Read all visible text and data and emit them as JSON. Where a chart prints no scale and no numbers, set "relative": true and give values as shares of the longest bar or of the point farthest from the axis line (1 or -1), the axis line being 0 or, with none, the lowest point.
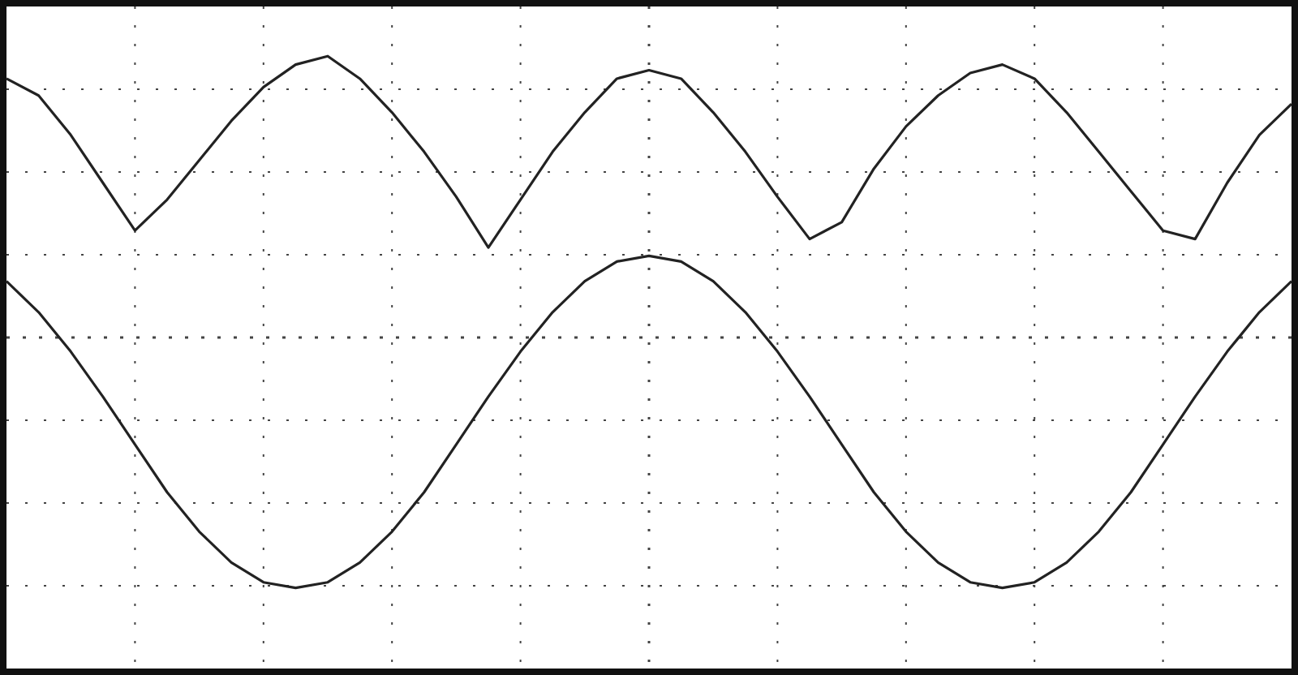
{
  "chart_data": {
    "type": "line",
    "relative": true,
    "ref_lines": [
      {
        "axis": "y",
        "value": 0
      }
    ],
    "grid": true,
    "marker": "none",
    "line_style": "solid",
    "categories": [
      null,
      null,
      null,
      null,
      null,
      null,
      null,
      null,
      null,
      null,
      null,
      null,
      null,
      null,
      null,
      null,
      null,
      null,
      null,
      null,
      null,
      null,
      null,
      null,
      null,
      null,
      null,
      null,
      null,
      null,
      null,
      null,
      null,
      null,
      null,
      null,
      null,
      null,
      null,
      null,
      null
    ],
    "series": [
      {
        "color": "#222222",
        "values": [
          0.92,
          0.86,
          0.72,
          0.55,
          0.38,
          0.49,
          0.63,
          0.77,
          0.89,
          0.97,
          1.0,
          0.92,
          0.8,
          0.66,
          0.5,
          0.32,
          0.49,
          0.66,
          0.8,
          0.92,
          0.95,
          0.92,
          0.8,
          0.66,
          0.5,
          0.35,
          0.41,
          0.6,
          0.75,
          0.86,
          0.94,
          0.97,
          0.92,
          0.8,
          0.66,
          0.52,
          0.38,
          0.35,
          0.55,
          0.72,
          0.83
        ]
      },
      {
        "color": "#222222",
        "values": [
          0.2,
          0.09,
          -0.05,
          -0.21,
          -0.38,
          -0.55,
          -0.69,
          -0.8,
          -0.87,
          -0.89,
          -0.87,
          -0.8,
          -0.69,
          -0.55,
          -0.38,
          -0.21,
          -0.05,
          0.09,
          0.2,
          0.27,
          0.29,
          0.27,
          0.2,
          0.09,
          -0.05,
          -0.21,
          -0.38,
          -0.55,
          -0.69,
          -0.8,
          -0.87,
          -0.89,
          -0.87,
          -0.8,
          -0.69,
          -0.55,
          -0.38,
          -0.21,
          -0.05,
          0.09,
          0.2
        ]
      }
    ]
  }
}
